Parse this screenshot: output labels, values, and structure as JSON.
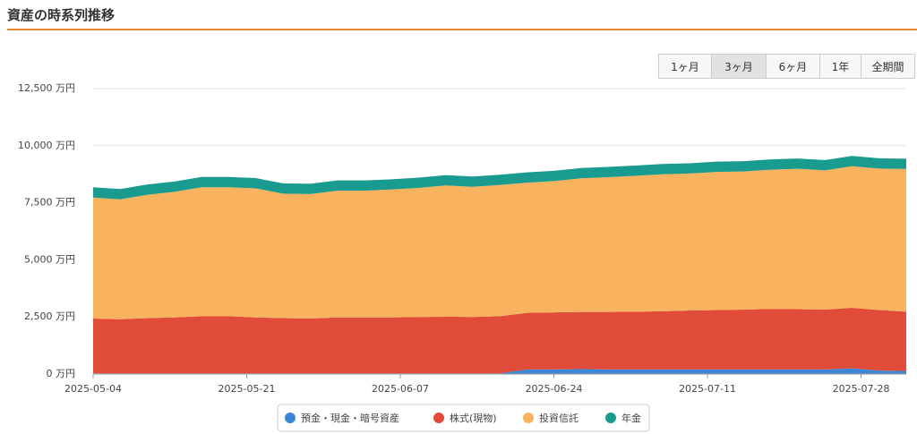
{
  "chart_data": {
    "type": "stacked-area",
    "title": "資産の時系列推移",
    "range_buttons": [
      "1ヶ月",
      "3ヶ月",
      "6ヶ月",
      "1年",
      "全期間"
    ],
    "active_range": 1,
    "x": [
      "2025-05-04",
      "2025-05-07",
      "2025-05-10",
      "2025-05-13",
      "2025-05-16",
      "2025-05-19",
      "2025-05-22",
      "2025-05-25",
      "2025-05-28",
      "2025-05-31",
      "2025-06-03",
      "2025-06-06",
      "2025-06-09",
      "2025-06-12",
      "2025-06-15",
      "2025-06-18",
      "2025-06-21",
      "2025-06-24",
      "2025-06-27",
      "2025-06-30",
      "2025-07-03",
      "2025-07-06",
      "2025-07-09",
      "2025-07-12",
      "2025-07-15",
      "2025-07-18",
      "2025-07-21",
      "2025-07-24",
      "2025-07-27",
      "2025-07-30",
      "2025-08-02"
    ],
    "xlim": [
      "2025-05-04",
      "2025-08-02"
    ],
    "xticks": [
      "2025-05-04",
      "2025-05-21",
      "2025-06-07",
      "2025-06-24",
      "2025-07-11",
      "2025-07-28"
    ],
    "ylim": [
      0,
      12500
    ],
    "yticks": [
      {
        "value": 0,
        "label": "0 万円"
      },
      {
        "value": 2500,
        "label": "2,500 万円"
      },
      {
        "value": 5000,
        "label": "5,000 万円"
      },
      {
        "value": 7500,
        "label": "7,500 万円"
      },
      {
        "value": 10000,
        "label": "10,000 万円"
      },
      {
        "value": 12500,
        "label": "12,500 万円"
      }
    ],
    "grid": true,
    "legend": "bottom",
    "series": [
      {
        "name": "預金・現金・暗号資産",
        "color": "#3c86d6",
        "values": [
          30,
          30,
          30,
          30,
          30,
          30,
          30,
          30,
          30,
          30,
          30,
          30,
          30,
          30,
          30,
          30,
          200,
          200,
          220,
          200,
          200,
          200,
          200,
          200,
          200,
          200,
          200,
          200,
          250,
          150,
          130
        ]
      },
      {
        "name": "株式(現物)",
        "color": "#e04b3a",
        "values": [
          2400,
          2370,
          2420,
          2450,
          2500,
          2500,
          2450,
          2420,
          2400,
          2450,
          2450,
          2450,
          2470,
          2480,
          2470,
          2500,
          2480,
          2500,
          2500,
          2520,
          2530,
          2550,
          2580,
          2600,
          2620,
          2650,
          2640,
          2620,
          2650,
          2650,
          2600
        ]
      },
      {
        "name": "投資信託",
        "color": "#f9b25e",
        "values": [
          5300,
          5250,
          5400,
          5500,
          5650,
          5650,
          5650,
          5450,
          5450,
          5550,
          5550,
          5600,
          5650,
          5750,
          5700,
          5750,
          5700,
          5750,
          5850,
          5900,
          5950,
          6000,
          6000,
          6050,
          6050,
          6100,
          6150,
          6100,
          6200,
          6200,
          6250
        ]
      },
      {
        "name": "年金",
        "color": "#1a9b8f",
        "values": [
          450,
          450,
          450,
          450,
          450,
          450,
          450,
          450,
          450,
          450,
          450,
          450,
          450,
          450,
          450,
          450,
          450,
          450,
          450,
          450,
          450,
          450,
          450,
          450,
          450,
          450,
          450,
          450,
          450,
          450,
          450
        ]
      }
    ]
  }
}
